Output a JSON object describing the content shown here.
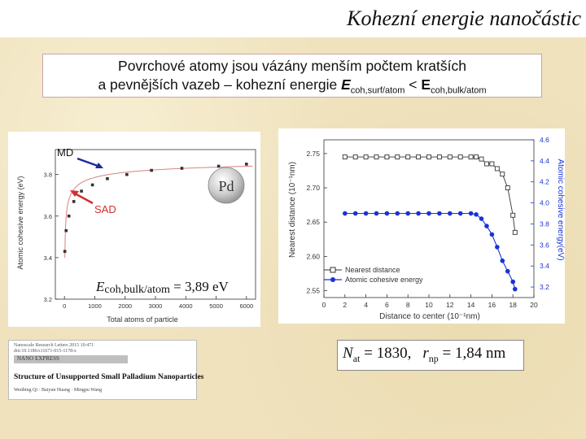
{
  "slide": {
    "title": "Kohezní energie nanočástic",
    "statement": {
      "line1": "Povrchové atomy jsou vázány menším počtem kratších",
      "line2_prefix": "a pevnějších vazeb – kohezní energie ",
      "e_symbol": "E",
      "sub_surf": "coh,surf/atom",
      "lt": " < ",
      "sub_bulk": "coh,bulk/atom"
    }
  },
  "left_chart_labels": {
    "md": "MD",
    "sad": "SAD",
    "element": "Pd",
    "formula_e": "E",
    "formula_sub": "coh,bulk/atom",
    "formula_value": " = 3,89 eV"
  },
  "paper": {
    "journal_line1": "Nanoscale Research Letters  2015 10:471",
    "journal_line2": "doi:10.1186/s11671-015-1178-z",
    "badge": "NANO EXPRESS",
    "article_title": "Structure of Unsupported Small Palladium Nanoparticles",
    "authors": "Wenbing Qi · Baiyun Huang · Mingpu Wang"
  },
  "formula_box": {
    "n_symbol": "N",
    "n_sub": "at",
    "n_value": " = 1830,",
    "r_symbol": "r",
    "r_sub": "np",
    "r_value": " = 1,84 nm"
  },
  "chart_data": [
    {
      "type": "scatter",
      "title": "",
      "xlabel": "Total atoms of particle",
      "ylabel": "Atomic cohesive energy (eV)",
      "xlim": [
        -300,
        6300
      ],
      "ylim": [
        3.2,
        3.92
      ],
      "xticks": [
        0,
        1000,
        2000,
        3000,
        4000,
        5000,
        6000
      ],
      "yticks": [
        3.2,
        3.4,
        3.6,
        3.8
      ],
      "series": [
        {
          "x": [
            13,
            55,
            147,
            309,
            561,
            923,
            1415,
            2057,
            2869,
            3871,
            5083,
            6000
          ],
          "y": [
            3.43,
            3.53,
            3.6,
            3.67,
            3.72,
            3.75,
            3.78,
            3.8,
            3.82,
            3.83,
            3.84,
            3.85
          ]
        }
      ],
      "colors": {
        "markers": "#333333",
        "fit_line": "#d98080"
      }
    },
    {
      "type": "line",
      "title": "",
      "xlabel": "Distance to center (10⁻¹nm)",
      "ylabel": "Nearest distance (10⁻¹nm)",
      "y2label": "Atomic cohesive energy(eV)",
      "xlim": [
        0,
        20
      ],
      "ylim": [
        2.54,
        2.77
      ],
      "y2lim": [
        3.1,
        4.6
      ],
      "xticks": [
        0,
        2,
        4,
        6,
        8,
        10,
        12,
        14,
        16,
        18,
        20
      ],
      "yticks": [
        2.55,
        2.6,
        2.65,
        2.7,
        2.75
      ],
      "y2ticks": [
        3.2,
        3.4,
        3.6,
        3.8,
        4.0,
        4.2,
        4.4,
        4.6
      ],
      "legend_position": "bottom-left",
      "series": [
        {
          "name": "Nearest distance",
          "axis": "left",
          "x": [
            2,
            3,
            4,
            5,
            6,
            7,
            8,
            9,
            10,
            11,
            12,
            13,
            14,
            14.5,
            15,
            15.5,
            16,
            16.5,
            17,
            17.5,
            18,
            18.2
          ],
          "y": [
            2.745,
            2.745,
            2.745,
            2.745,
            2.745,
            2.745,
            2.745,
            2.745,
            2.745,
            2.745,
            2.745,
            2.745,
            2.745,
            2.745,
            2.742,
            2.735,
            2.735,
            2.728,
            2.72,
            2.7,
            2.66,
            2.635
          ]
        },
        {
          "name": "Atomic cohesive energy",
          "axis": "right",
          "x": [
            2,
            3,
            4,
            5,
            6,
            7,
            8,
            9,
            10,
            11,
            12,
            13,
            14,
            14.5,
            15,
            15.5,
            16,
            16.5,
            17,
            17.5,
            18,
            18.2
          ],
          "y": [
            3.9,
            3.9,
            3.9,
            3.9,
            3.9,
            3.9,
            3.9,
            3.9,
            3.9,
            3.9,
            3.9,
            3.9,
            3.9,
            3.89,
            3.85,
            3.78,
            3.7,
            3.58,
            3.45,
            3.35,
            3.25,
            3.18
          ]
        }
      ],
      "colors": {
        "nearest": "#333333",
        "energy": "#1a33d6",
        "right_axis": "#1a33d6"
      }
    }
  ]
}
